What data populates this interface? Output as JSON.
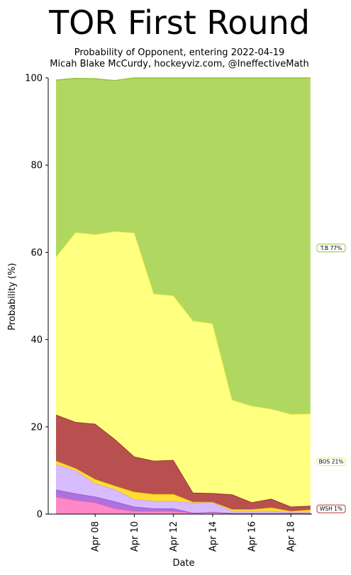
{
  "chart_data": {
    "type": "area",
    "title": "TOR First Round",
    "subtitle_line1": "Probability of Opponent, entering 2022-04-19",
    "subtitle_line2": "Micah Blake McCurdy, hockeyviz.com, @IneffectiveMath",
    "xlabel": "Date",
    "ylabel": "Probability (%)",
    "ylim": [
      0,
      100
    ],
    "y_ticks": [
      "0",
      "20",
      "40",
      "60",
      "80",
      "100"
    ],
    "x_ticks": [
      {
        "label": "Apr 08",
        "date": "2022-04-08"
      },
      {
        "label": "Apr 10",
        "date": "2022-04-10"
      },
      {
        "label": "Apr 12",
        "date": "2022-04-12"
      },
      {
        "label": "Apr 14",
        "date": "2022-04-14"
      },
      {
        "label": "Apr 16",
        "date": "2022-04-16"
      },
      {
        "label": "Apr 18",
        "date": "2022-04-18"
      }
    ],
    "x": [
      "2022-04-06",
      "2022-04-07",
      "2022-04-08",
      "2022-04-09",
      "2022-04-10",
      "2022-04-11",
      "2022-04-12",
      "2022-04-13",
      "2022-04-14",
      "2022-04-15",
      "2022-04-16",
      "2022-04-17",
      "2022-04-18",
      "2022-04-19"
    ],
    "grid": false,
    "legend": "right-side labels",
    "series": [
      {
        "values": [
          4.0,
          3.2,
          2.7,
          1.3,
          0.7,
          0.7,
          0.7,
          0.3,
          0.5,
          0.2,
          0.2,
          0.2,
          0.2,
          0.2
        ],
        "fill": "#ff88c8",
        "line": "#e860a8"
      },
      {
        "values": [
          1.6,
          1.5,
          1.3,
          1.6,
          1.0,
          0.6,
          0.6,
          0.0,
          0.0,
          0.0,
          0.0,
          0.0,
          0.0,
          0.0
        ],
        "fill": "#b070e0",
        "line": "#9050d0"
      },
      {
        "values": [
          5.8,
          5.3,
          3.0,
          2.8,
          1.7,
          1.7,
          1.7,
          2.3,
          2.2,
          0.5,
          0.5,
          0.5,
          0.2,
          0.2
        ],
        "fill": "#d8bcff",
        "line": "#c0a0f0"
      },
      {
        "values": [
          0.8,
          0.5,
          1.0,
          0.8,
          1.7,
          1.6,
          1.6,
          0.2,
          0.1,
          0.4,
          0.4,
          0.8,
          0.3,
          0.6
        ],
        "fill": "#ffdd33",
        "line": "#f0c000"
      },
      {
        "values": [
          10.6,
          10.6,
          12.7,
          10.7,
          8.1,
          7.6,
          7.8,
          2.1,
          2.0,
          3.4,
          1.6,
          2.0,
          1.0,
          0.9
        ],
        "fill": "#b85050",
        "line": "#902020"
      },
      {
        "name": "BOS 21%",
        "values": [
          36.2,
          43.5,
          43.4,
          47.6,
          51.3,
          38.3,
          37.7,
          39.4,
          38.9,
          21.7,
          22.1,
          20.6,
          21.2,
          21.1
        ],
        "fill": "#ffff80",
        "line": "#f0f040"
      },
      {
        "name": "T.B 77%",
        "values": [
          40.5,
          35.3,
          35.7,
          34.6,
          35.5,
          49.5,
          49.9,
          55.7,
          56.3,
          73.8,
          75.2,
          75.9,
          77.1,
          77.0
        ],
        "fill": "#b0d860",
        "line": "#98c040"
      }
    ],
    "end_labels": [
      {
        "text": "T.B 77%",
        "value": 61,
        "border": "#98c040"
      },
      {
        "text": "BOS 21%",
        "value": 12,
        "border": "#f0f040"
      },
      {
        "text": "WSH  1%",
        "value": 1.2,
        "border": "#c03030"
      }
    ]
  }
}
